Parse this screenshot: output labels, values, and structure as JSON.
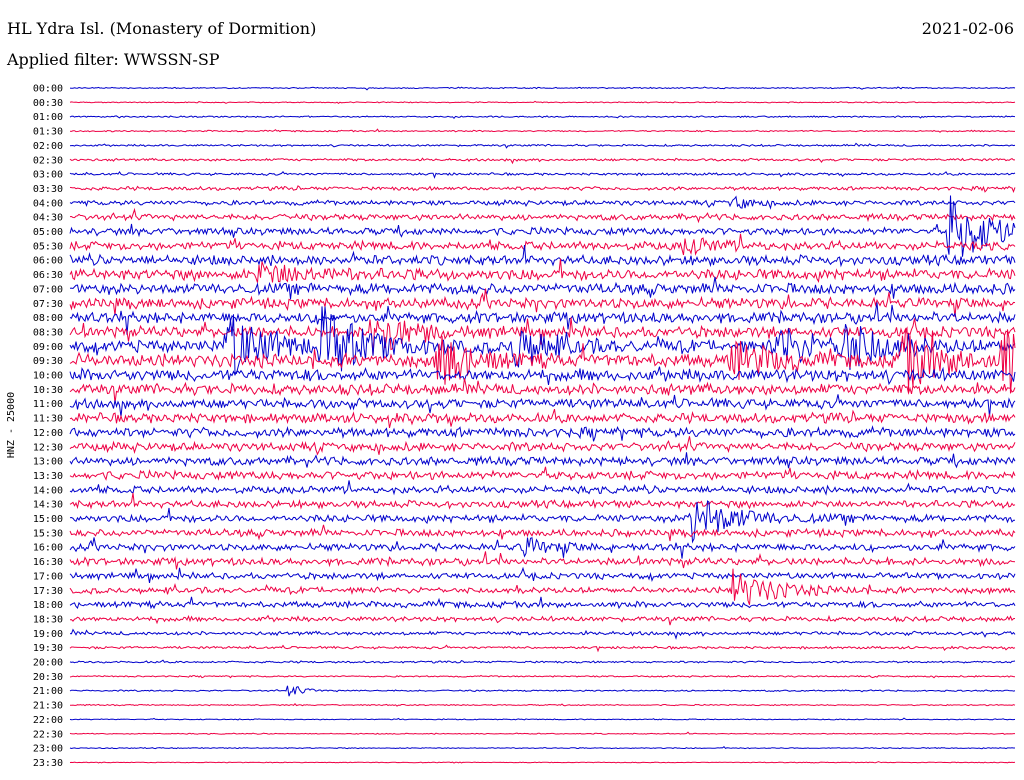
{
  "header": {
    "station": "HL Ydra Isl. (Monastery of Dormition)",
    "date": "2021-02-06",
    "filter": "Applied filter: WWSSN-SP"
  },
  "chart_data": {
    "type": "line",
    "ylabel": "HNZ - 25000",
    "rows": [
      "00:00",
      "00:30",
      "01:00",
      "01:30",
      "02:00",
      "02:30",
      "03:00",
      "03:30",
      "04:00",
      "04:30",
      "05:00",
      "05:30",
      "06:00",
      "06:30",
      "07:00",
      "07:30",
      "08:00",
      "08:30",
      "09:00",
      "09:30",
      "10:00",
      "10:30",
      "11:00",
      "11:30",
      "12:00",
      "12:30",
      "13:00",
      "13:30",
      "14:00",
      "14:30",
      "15:00",
      "15:30",
      "16:00",
      "16:30",
      "17:00",
      "17:30",
      "18:00",
      "18:30",
      "19:00",
      "19:30",
      "20:00",
      "20:30",
      "21:00",
      "21:30",
      "22:00",
      "22:30",
      "23:00",
      "23:30"
    ],
    "series_colors": [
      "#0000cc",
      "#ee0044"
    ],
    "noise_levels": [
      0.5,
      0.4,
      0.6,
      0.6,
      0.8,
      1,
      1,
      1.5,
      2,
      2.5,
      3,
      3.5,
      4,
      4.5,
      4.5,
      4.5,
      4.5,
      4.5,
      5,
      5.5,
      5,
      4.5,
      4,
      4,
      4,
      3.5,
      3.5,
      3.5,
      3,
      3,
      3,
      3,
      3,
      3,
      2.5,
      2.5,
      2.5,
      2,
      1.5,
      1,
      0.8,
      0.6,
      0.6,
      0.5,
      0.4,
      0.4,
      0.4,
      0.3
    ],
    "events": [
      {
        "row": 18,
        "x": 0.165,
        "amp": 34,
        "dur": 0.04,
        "note": "large"
      },
      {
        "row": 18,
        "x": 0.265,
        "amp": 36,
        "dur": 0.04
      },
      {
        "row": 17,
        "x": 0.32,
        "amp": 28,
        "dur": 0.03
      },
      {
        "row": 19,
        "x": 0.39,
        "amp": 30,
        "dur": 0.03
      },
      {
        "row": 18,
        "x": 0.47,
        "amp": 22,
        "dur": 0.035
      },
      {
        "row": 19,
        "x": 0.7,
        "amp": 18,
        "dur": 0.04
      },
      {
        "row": 18,
        "x": 0.745,
        "amp": 24,
        "dur": 0.035
      },
      {
        "row": 18,
        "x": 0.815,
        "amp": 26,
        "dur": 0.04
      },
      {
        "row": 19,
        "x": 0.88,
        "amp": 30,
        "dur": 0.04
      },
      {
        "row": 10,
        "x": 0.93,
        "amp": 36,
        "dur": 0.04
      },
      {
        "row": 19,
        "x": 0.985,
        "amp": 34,
        "dur": 0.03
      },
      {
        "row": 30,
        "x": 0.655,
        "amp": 26,
        "dur": 0.04
      },
      {
        "row": 35,
        "x": 0.7,
        "amp": 20,
        "dur": 0.04
      },
      {
        "row": 32,
        "x": 0.48,
        "amp": 8,
        "dur": 0.03
      },
      {
        "row": 42,
        "x": 0.23,
        "amp": 6,
        "dur": 0.015
      },
      {
        "row": 8,
        "x": 0.7,
        "amp": 6,
        "dur": 0.02
      },
      {
        "row": 11,
        "x": 0.65,
        "amp": 8,
        "dur": 0.03
      },
      {
        "row": 13,
        "x": 0.2,
        "amp": 10,
        "dur": 0.05
      }
    ]
  }
}
